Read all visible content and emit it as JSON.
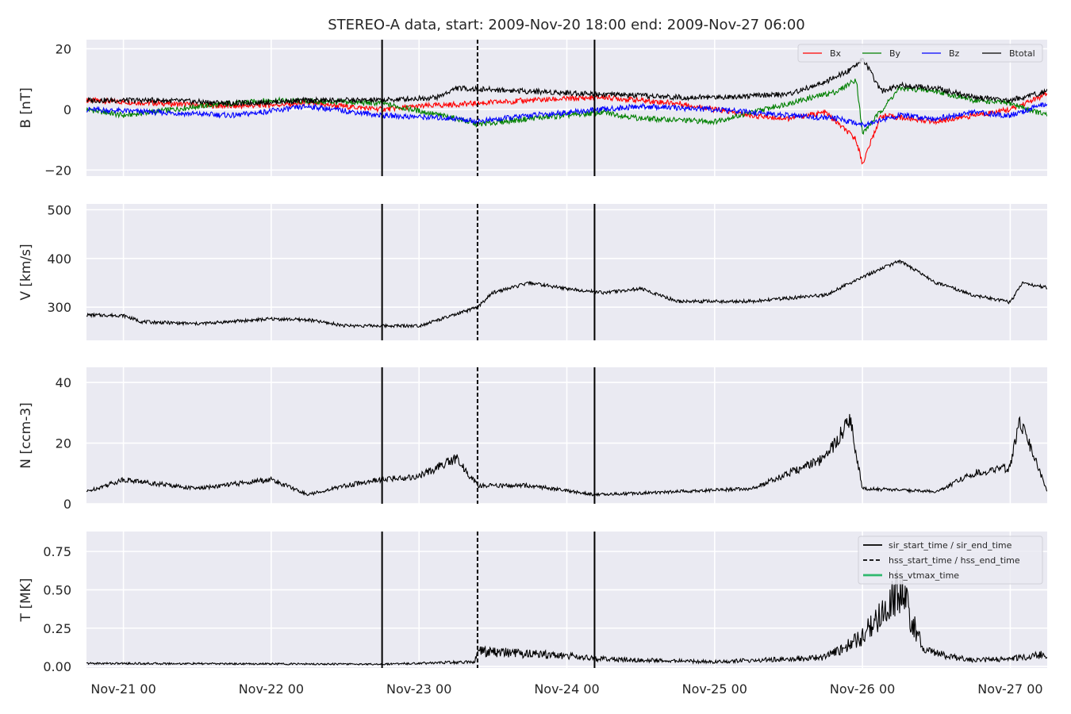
{
  "chart_data": {
    "type": "line",
    "title": "STEREO-A data, start: 2009-Nov-20 18:00  end: 2009-Nov-27 06:00",
    "x_range": [
      "2009-11-20 18:00",
      "2009-11-27 06:00"
    ],
    "x_ticks": [
      {
        "t": "2009-11-21 00:00",
        "label": "Nov-21 00"
      },
      {
        "t": "2009-11-22 00:00",
        "label": "Nov-22 00"
      },
      {
        "t": "2009-11-23 00:00",
        "label": "Nov-23 00"
      },
      {
        "t": "2009-11-24 00:00",
        "label": "Nov-24 00"
      },
      {
        "t": "2009-11-25 00:00",
        "label": "Nov-25 00"
      },
      {
        "t": "2009-11-26 00:00",
        "label": "Nov-26 00"
      },
      {
        "t": "2009-11-27 00:00",
        "label": "Nov-27 00"
      }
    ],
    "grid": true,
    "event_lines": [
      {
        "t": "2009-11-22 18:00",
        "style": "solid"
      },
      {
        "t": "2009-11-23 09:30",
        "style": "dashed"
      },
      {
        "t": "2009-11-24 04:30",
        "style": "solid"
      }
    ],
    "panels": [
      {
        "ylabel": "B [nT]",
        "ylim": [
          -22,
          23
        ],
        "yticks": [
          -20,
          0,
          20
        ],
        "ytick_labels": [
          "−20",
          "0",
          "20"
        ],
        "legend": {
          "placement": "top-right",
          "columns": 4
        },
        "series": [
          {
            "name": "Bx",
            "color": "#ff0000",
            "points": [
              [
                "2009-11-20 18:00",
                3
              ],
              [
                "2009-11-21 06:00",
                2
              ],
              [
                "2009-11-21 18:00",
                1
              ],
              [
                "2009-11-22 06:00",
                2
              ],
              [
                "2009-11-22 18:00",
                0
              ],
              [
                "2009-11-23 00:00",
                1
              ],
              [
                "2009-11-23 09:30",
                2
              ],
              [
                "2009-11-23 18:00",
                3
              ],
              [
                "2009-11-24 06:00",
                4
              ],
              [
                "2009-11-24 18:00",
                2
              ],
              [
                "2009-11-25 00:00",
                0
              ],
              [
                "2009-11-25 06:00",
                -2
              ],
              [
                "2009-11-25 12:00",
                -3
              ],
              [
                "2009-11-25 18:00",
                -1
              ],
              [
                "2009-11-25 23:00",
                -10
              ],
              [
                "2009-11-26 00:00",
                -18
              ],
              [
                "2009-11-26 03:00",
                -2
              ],
              [
                "2009-11-26 12:00",
                -4
              ],
              [
                "2009-11-26 18:00",
                -2
              ],
              [
                "2009-11-27 00:00",
                0
              ],
              [
                "2009-11-27 06:00",
                5
              ]
            ]
          },
          {
            "name": "By",
            "color": "#008000",
            "points": [
              [
                "2009-11-20 18:00",
                0
              ],
              [
                "2009-11-21 00:00",
                -2
              ],
              [
                "2009-11-21 12:00",
                1
              ],
              [
                "2009-11-22 00:00",
                3
              ],
              [
                "2009-11-22 18:00",
                2
              ],
              [
                "2009-11-23 06:00",
                -3
              ],
              [
                "2009-11-23 09:30",
                -5
              ],
              [
                "2009-11-23 18:00",
                -3
              ],
              [
                "2009-11-24 06:00",
                -1
              ],
              [
                "2009-11-24 12:00",
                -3
              ],
              [
                "2009-11-25 00:00",
                -4
              ],
              [
                "2009-11-25 12:00",
                2
              ],
              [
                "2009-11-25 20:00",
                6
              ],
              [
                "2009-11-25 23:00",
                10
              ],
              [
                "2009-11-26 00:00",
                -8
              ],
              [
                "2009-11-26 06:00",
                7
              ],
              [
                "2009-11-26 12:00",
                6
              ],
              [
                "2009-11-26 18:00",
                3
              ],
              [
                "2009-11-27 00:00",
                2
              ],
              [
                "2009-11-27 06:00",
                -2
              ]
            ]
          },
          {
            "name": "Bz",
            "color": "#0000ff",
            "points": [
              [
                "2009-11-20 18:00",
                0
              ],
              [
                "2009-11-21 06:00",
                -1
              ],
              [
                "2009-11-21 18:00",
                -2
              ],
              [
                "2009-11-22 06:00",
                1
              ],
              [
                "2009-11-22 18:00",
                -2
              ],
              [
                "2009-11-23 06:00",
                -3
              ],
              [
                "2009-11-23 09:30",
                -4
              ],
              [
                "2009-11-23 18:00",
                -2
              ],
              [
                "2009-11-24 00:00",
                -1
              ],
              [
                "2009-11-24 12:00",
                1
              ],
              [
                "2009-11-25 00:00",
                0
              ],
              [
                "2009-11-25 12:00",
                -2
              ],
              [
                "2009-11-25 20:00",
                -3
              ],
              [
                "2009-11-26 00:00",
                -5
              ],
              [
                "2009-11-26 06:00",
                -2
              ],
              [
                "2009-11-26 12:00",
                -3
              ],
              [
                "2009-11-26 18:00",
                -1
              ],
              [
                "2009-11-27 00:00",
                -2
              ],
              [
                "2009-11-27 06:00",
                2
              ]
            ]
          },
          {
            "name": "Btotal",
            "color": "#000000",
            "points": [
              [
                "2009-11-20 18:00",
                3
              ],
              [
                "2009-11-21 06:00",
                3
              ],
              [
                "2009-11-21 18:00",
                2
              ],
              [
                "2009-11-22 06:00",
                3
              ],
              [
                "2009-11-22 18:00",
                3
              ],
              [
                "2009-11-23 03:00",
                4
              ],
              [
                "2009-11-23 06:00",
                7
              ],
              [
                "2009-11-23 18:00",
                6
              ],
              [
                "2009-11-24 06:00",
                5
              ],
              [
                "2009-11-24 18:00",
                4
              ],
              [
                "2009-11-25 00:00",
                4
              ],
              [
                "2009-11-25 12:00",
                5
              ],
              [
                "2009-11-25 18:00",
                9
              ],
              [
                "2009-11-25 22:00",
                13
              ],
              [
                "2009-11-26 00:00",
                17
              ],
              [
                "2009-11-26 03:00",
                6
              ],
              [
                "2009-11-26 06:00",
                8
              ],
              [
                "2009-11-26 12:00",
                7
              ],
              [
                "2009-11-26 18:00",
                4
              ],
              [
                "2009-11-27 00:00",
                3
              ],
              [
                "2009-11-27 06:00",
                6
              ]
            ]
          }
        ]
      },
      {
        "ylabel": "V [km/s]",
        "ylim": [
          232,
          512
        ],
        "yticks": [
          300,
          400,
          500
        ],
        "ytick_labels": [
          "300",
          "400",
          "500"
        ],
        "series": [
          {
            "name": "V",
            "color": "#000000",
            "points": [
              [
                "2009-11-20 18:00",
                284
              ],
              [
                "2009-11-21 00:00",
                283
              ],
              [
                "2009-11-21 03:00",
                270
              ],
              [
                "2009-11-21 12:00",
                266
              ],
              [
                "2009-11-22 00:00",
                276
              ],
              [
                "2009-11-22 06:00",
                274
              ],
              [
                "2009-11-22 12:00",
                262
              ],
              [
                "2009-11-23 00:00",
                262
              ],
              [
                "2009-11-23 06:00",
                285
              ],
              [
                "2009-11-23 09:30",
                300
              ],
              [
                "2009-11-23 12:00",
                330
              ],
              [
                "2009-11-23 18:00",
                350
              ],
              [
                "2009-11-24 00:00",
                338
              ],
              [
                "2009-11-24 06:00",
                330
              ],
              [
                "2009-11-24 12:00",
                338
              ],
              [
                "2009-11-24 18:00",
                312
              ],
              [
                "2009-11-25 06:00",
                312
              ],
              [
                "2009-11-25 18:00",
                325
              ],
              [
                "2009-11-26 00:00",
                362
              ],
              [
                "2009-11-26 06:00",
                395
              ],
              [
                "2009-11-26 12:00",
                350
              ],
              [
                "2009-11-26 18:00",
                325
              ],
              [
                "2009-11-27 00:00",
                310
              ],
              [
                "2009-11-27 02:00",
                350
              ],
              [
                "2009-11-27 06:00",
                340
              ]
            ]
          }
        ]
      },
      {
        "ylabel": "N [ccm-3]",
        "ylim": [
          0,
          45
        ],
        "yticks": [
          0,
          20,
          40
        ],
        "ytick_labels": [
          "0",
          "20",
          "40"
        ],
        "series": [
          {
            "name": "N",
            "color": "#000000",
            "points": [
              [
                "2009-11-20 18:00",
                4
              ],
              [
                "2009-11-21 00:00",
                8
              ],
              [
                "2009-11-21 12:00",
                5
              ],
              [
                "2009-11-22 00:00",
                8
              ],
              [
                "2009-11-22 06:00",
                3
              ],
              [
                "2009-11-22 12:00",
                6
              ],
              [
                "2009-11-22 18:00",
                8
              ],
              [
                "2009-11-23 00:00",
                9
              ],
              [
                "2009-11-23 06:00",
                15
              ],
              [
                "2009-11-23 09:30",
                6
              ],
              [
                "2009-11-23 18:00",
                6
              ],
              [
                "2009-11-24 04:30",
                3
              ],
              [
                "2009-11-24 18:00",
                4
              ],
              [
                "2009-11-25 06:00",
                5
              ],
              [
                "2009-11-25 12:00",
                10
              ],
              [
                "2009-11-25 18:00",
                15
              ],
              [
                "2009-11-25 22:00",
                28
              ],
              [
                "2009-11-26 00:00",
                5
              ],
              [
                "2009-11-26 12:00",
                4
              ],
              [
                "2009-11-26 18:00",
                10
              ],
              [
                "2009-11-27 00:00",
                12
              ],
              [
                "2009-11-27 01:30",
                28
              ],
              [
                "2009-11-27 06:00",
                4
              ]
            ]
          }
        ]
      },
      {
        "ylabel": "T [MK]",
        "ylim": [
          -0.01,
          0.88
        ],
        "yticks": [
          0.0,
          0.25,
          0.5,
          0.75
        ],
        "ytick_labels": [
          "0.00",
          "0.25",
          "0.50",
          "0.75"
        ],
        "legend": {
          "placement": "top-right",
          "columns": 1
        },
        "series": [
          {
            "name": "T",
            "color": "#000000",
            "points": [
              [
                "2009-11-20 18:00",
                0.02
              ],
              [
                "2009-11-22 18:00",
                0.015
              ],
              [
                "2009-11-23 09:00",
                0.03
              ],
              [
                "2009-11-23 09:30",
                0.1
              ],
              [
                "2009-11-24 00:00",
                0.07
              ],
              [
                "2009-11-24 04:30",
                0.05
              ],
              [
                "2009-11-25 00:00",
                0.03
              ],
              [
                "2009-11-25 18:00",
                0.06
              ],
              [
                "2009-11-26 00:00",
                0.2
              ],
              [
                "2009-11-26 06:00",
                0.5
              ],
              [
                "2009-11-26 10:00",
                0.1
              ],
              [
                "2009-11-26 18:00",
                0.04
              ],
              [
                "2009-11-27 00:00",
                0.05
              ],
              [
                "2009-11-27 06:00",
                0.08
              ]
            ]
          }
        ],
        "legend_entries": [
          {
            "label": "sir_start_time / sir_end_time",
            "style": "solid",
            "color": "#000000"
          },
          {
            "label": "hss_start_time / hss_end_time",
            "style": "dashed",
            "color": "#000000"
          },
          {
            "label": "hss_vtmax_time",
            "style": "solid",
            "color": "#2fb86e"
          }
        ]
      }
    ]
  }
}
